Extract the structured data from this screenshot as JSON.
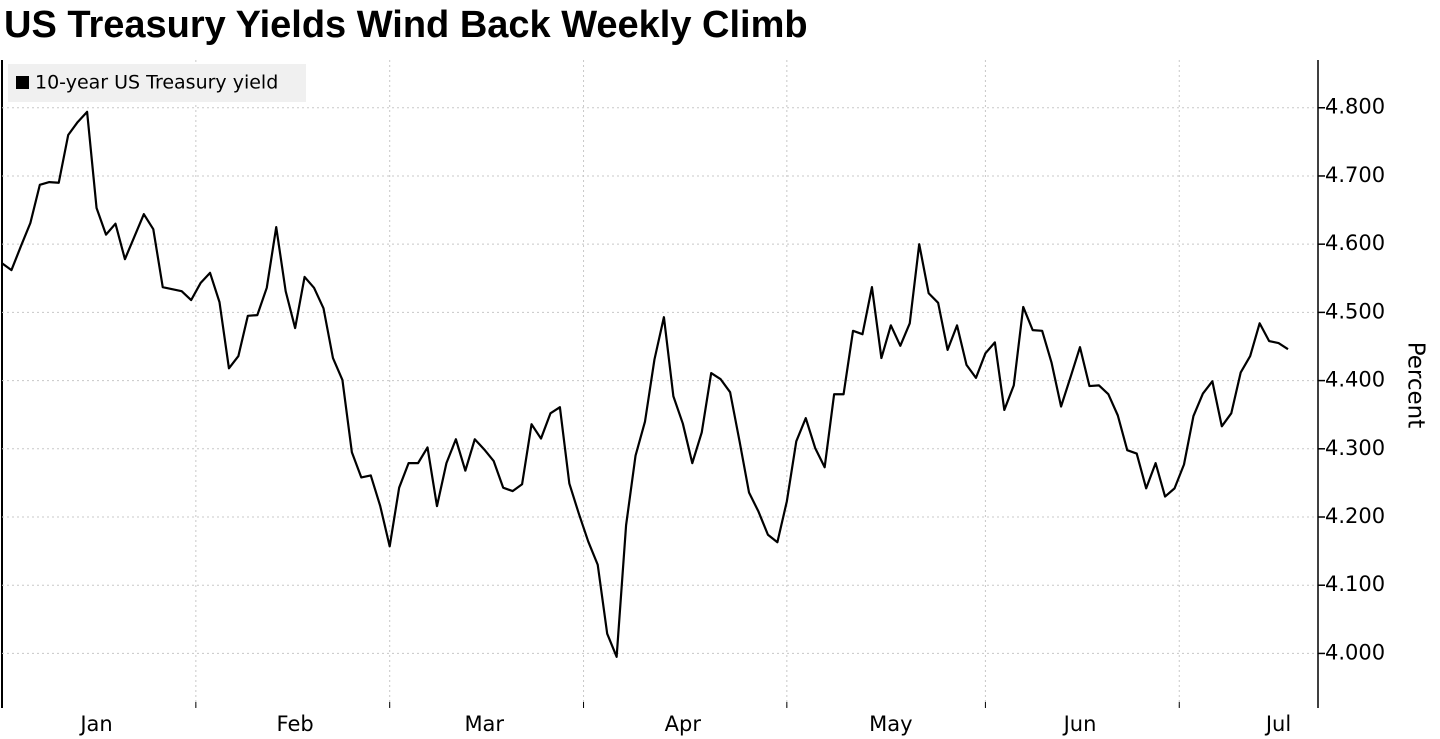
{
  "chart_data": {
    "type": "line",
    "title": "US Treasury Yields Wind Back Weekly Climb",
    "y_axis_label": "Percent",
    "categories": [
      null,
      null,
      null,
      null,
      null,
      null,
      null,
      null,
      null,
      null,
      "Jan",
      null,
      null,
      null,
      null,
      null,
      null,
      null,
      null,
      null,
      null,
      null,
      null,
      null,
      null,
      null,
      null,
      null,
      null,
      null,
      null,
      "Feb",
      null,
      null,
      null,
      null,
      null,
      null,
      null,
      null,
      null,
      null,
      null,
      null,
      null,
      null,
      null,
      null,
      null,
      null,
      null,
      "Mar",
      null,
      null,
      null,
      null,
      null,
      null,
      null,
      null,
      null,
      null,
      null,
      null,
      null,
      null,
      null,
      null,
      null,
      null,
      null,
      null,
      "Apr",
      null,
      null,
      null,
      null,
      null,
      null,
      null,
      null,
      null,
      null,
      null,
      null,
      null,
      null,
      null,
      null,
      null,
      null,
      null,
      null,
      null,
      "May",
      null,
      null,
      null,
      null,
      null,
      null,
      null,
      null,
      null,
      null,
      null,
      null,
      null,
      null,
      null,
      null,
      null,
      null,
      null,
      "Jun",
      null,
      null,
      null,
      null,
      null,
      null,
      null,
      null,
      null,
      null,
      null,
      null,
      null,
      null,
      null,
      null,
      null,
      null,
      null,
      null,
      "Jul",
      null
    ],
    "series": [
      {
        "name": "10-year US Treasury yield",
        "color": "#000000",
        "values": [
          4.572,
          4.562,
          4.597,
          4.631,
          4.687,
          4.691,
          4.69,
          4.76,
          4.779,
          4.794,
          4.653,
          4.614,
          4.63,
          4.578,
          4.611,
          4.644,
          4.622,
          4.537,
          4.534,
          4.531,
          4.518,
          4.543,
          4.558,
          4.515,
          4.418,
          4.436,
          4.495,
          4.496,
          4.536,
          4.625,
          4.531,
          4.477,
          4.552,
          4.536,
          4.506,
          4.433,
          4.401,
          4.295,
          4.258,
          4.261,
          4.216,
          4.157,
          4.243,
          4.279,
          4.279,
          4.302,
          4.216,
          4.279,
          4.314,
          4.268,
          4.314,
          4.299,
          4.282,
          4.243,
          4.238,
          4.248,
          4.336,
          4.315,
          4.352,
          4.361,
          4.249,
          4.205,
          4.164,
          4.13,
          4.029,
          3.995,
          4.188,
          4.29,
          4.34,
          4.431,
          4.493,
          4.377,
          4.337,
          4.279,
          4.324,
          4.411,
          4.402,
          4.383,
          4.311,
          4.236,
          4.208,
          4.174,
          4.163,
          4.223,
          4.311,
          4.345,
          4.301,
          4.273,
          4.38,
          4.38,
          4.473,
          4.468,
          4.537,
          4.433,
          4.481,
          4.451,
          4.484,
          4.6,
          4.528,
          4.514,
          4.445,
          4.481,
          4.423,
          4.404,
          4.44,
          4.456,
          4.357,
          4.393,
          4.508,
          4.474,
          4.473,
          4.426,
          4.362,
          4.405,
          4.449,
          4.392,
          4.393,
          4.38,
          4.349,
          4.298,
          4.293,
          4.242,
          4.279,
          4.23,
          4.242,
          4.277,
          4.348,
          4.381,
          4.399,
          4.333,
          4.352,
          4.412,
          4.436,
          4.484,
          4.458,
          4.455,
          4.446
        ]
      }
    ],
    "ylim": [
      3.92,
      4.87
    ],
    "yticks": [
      {
        "value": 4.0,
        "label": "4.000"
      },
      {
        "value": 4.1,
        "label": "4.100"
      },
      {
        "value": 4.2,
        "label": "4.200"
      },
      {
        "value": 4.3,
        "label": "4.300"
      },
      {
        "value": 4.4,
        "label": "4.400"
      },
      {
        "value": 4.5,
        "label": "4.500"
      },
      {
        "value": 4.6,
        "label": "4.600"
      },
      {
        "value": 4.7,
        "label": "4.700"
      },
      {
        "value": 4.8,
        "label": "4.800"
      }
    ],
    "grid": true,
    "legend": "top-left"
  }
}
